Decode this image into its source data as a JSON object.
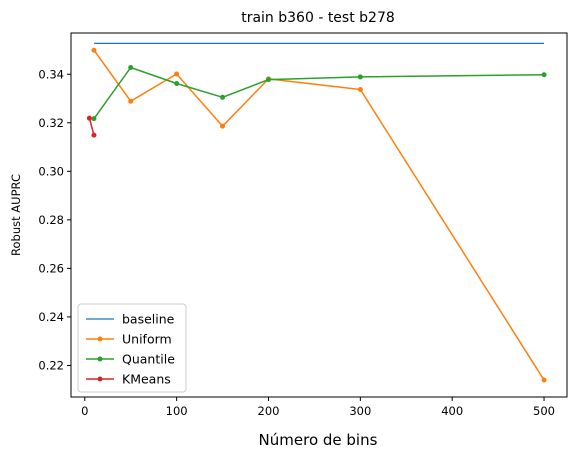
{
  "chart_data": {
    "type": "line",
    "title": "train b360 - test b278",
    "xlabel": "Número de bins",
    "ylabel": "Robust AUPRC",
    "xlim": [
      -15,
      525
    ],
    "ylim": [
      0.207,
      0.357
    ],
    "xticks": [
      0,
      100,
      200,
      300,
      400,
      500
    ],
    "yticks": [
      0.22,
      0.24,
      0.26,
      0.28,
      0.3,
      0.32,
      0.34
    ],
    "ytick_labels": [
      "0.22",
      "0.24",
      "0.26",
      "0.28",
      "0.30",
      "0.32",
      "0.34"
    ],
    "grid": false,
    "legend_position": "lower-left",
    "series": [
      {
        "name": "baseline",
        "color": "#1f77b4",
        "marker": "none",
        "x": [
          10,
          500
        ],
        "y": [
          0.3527,
          0.3527
        ]
      },
      {
        "name": "Uniform",
        "color": "#ff7f0e",
        "marker": "circle",
        "x": [
          10,
          50,
          100,
          150,
          200,
          300,
          500
        ],
        "y": [
          0.3499,
          0.3289,
          0.3401,
          0.3186,
          0.3381,
          0.3337,
          0.214
        ]
      },
      {
        "name": "Quantile",
        "color": "#2ca02c",
        "marker": "circle",
        "x": [
          10,
          50,
          100,
          150,
          200,
          300,
          500
        ],
        "y": [
          0.3217,
          0.3428,
          0.3362,
          0.3305,
          0.3378,
          0.3389,
          0.3398
        ]
      },
      {
        "name": "KMeans",
        "color": "#d62728",
        "marker": "circle",
        "x": [
          5,
          10
        ],
        "y": [
          0.3219,
          0.3149
        ]
      }
    ]
  }
}
